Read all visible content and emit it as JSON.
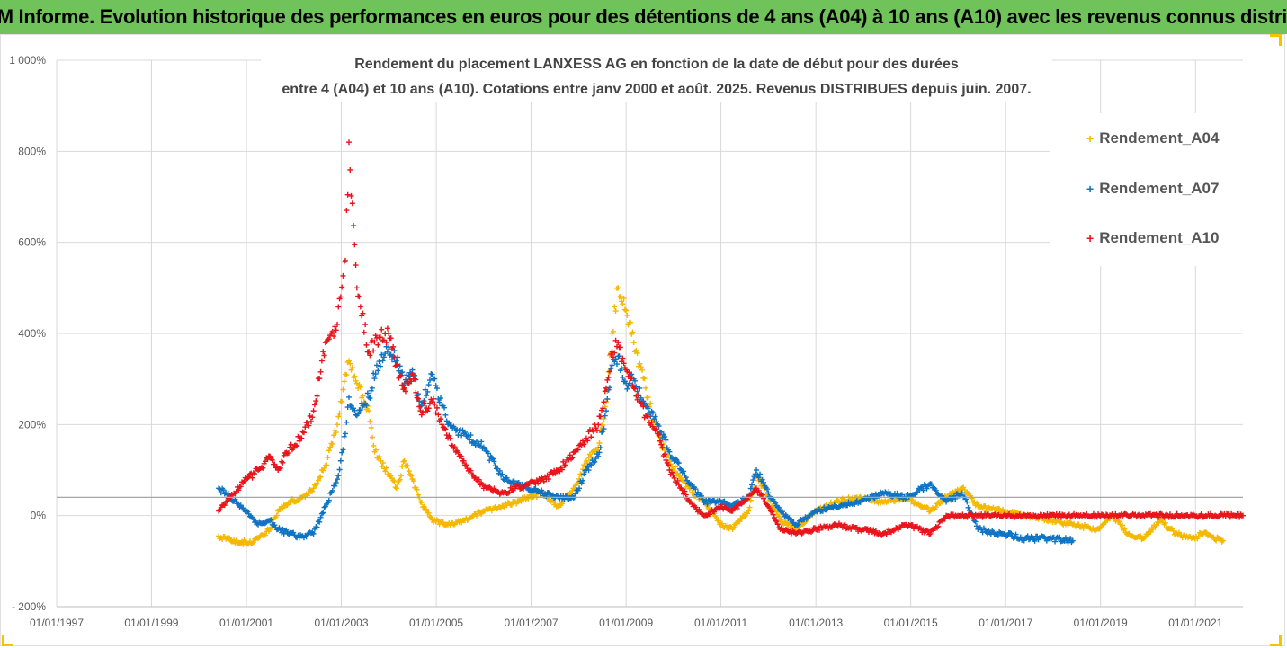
{
  "banner": {
    "title": "ADAM Informe. Evolution historique des performances en euros pour des détentions de 4 ans (A04) à 10 ans (A10) avec les revenus connus distribués",
    "background": "#70c35a"
  },
  "chart_data": {
    "type": "scatter",
    "title_line1": "Rendement du placement LANXESS AG en fonction de la date de début pour des durées",
    "title_line2": "entre 4 (A04) et 10 ans (A10). Cotations entre janv 2000 et août. 2025. Revenus DISTRIBUES depuis juin. 2007.",
    "xlabel": "",
    "ylabel": "",
    "x_tick_labels": [
      "01/01/1997",
      "01/01/1999",
      "01/01/2001",
      "01/01/2003",
      "01/01/2005",
      "01/01/2007",
      "01/01/2009",
      "01/01/2011",
      "01/01/2013",
      "01/01/2015",
      "01/01/2017",
      "01/01/2019",
      "01/01/2021"
    ],
    "x_ticks": [
      "1997-01-01",
      "1999-01-01",
      "2001-01-01",
      "2003-01-01",
      "2005-01-01",
      "2007-01-01",
      "2009-01-01",
      "2011-01-01",
      "2013-01-01",
      "2015-01-01",
      "2017-01-01",
      "2019-01-01",
      "2021-01-01"
    ],
    "xlim": [
      "1997-01-01",
      "2022-01-01"
    ],
    "y_tick_labels": [
      "- 200%",
      "0%",
      "200%",
      "400%",
      "600%",
      "800%",
      "1 000%"
    ],
    "y_ticks": [
      -200,
      0,
      200,
      400,
      600,
      800,
      1000
    ],
    "ylim": [
      -200,
      1000
    ],
    "reference_line_y": 40,
    "grid": true,
    "legend_position": "right",
    "marker": "+",
    "series": [
      {
        "name": "Rendement_A04",
        "color": "#f5b800",
        "points": [
          [
            "2000-06-01",
            -45
          ],
          [
            "2000-09-01",
            -55
          ],
          [
            "2001-01-01",
            -60
          ],
          [
            "2001-04-01",
            -50
          ],
          [
            "2001-07-01",
            -30
          ],
          [
            "2001-09-01",
            10
          ],
          [
            "2001-12-01",
            30
          ],
          [
            "2002-03-01",
            40
          ],
          [
            "2002-06-01",
            60
          ],
          [
            "2002-09-01",
            110
          ],
          [
            "2002-12-01",
            200
          ],
          [
            "2003-02-01",
            310
          ],
          [
            "2003-03-01",
            340
          ],
          [
            "2003-05-01",
            290
          ],
          [
            "2003-08-01",
            230
          ],
          [
            "2003-09-15",
            140
          ],
          [
            "2003-11-01",
            120
          ],
          [
            "2004-01-01",
            90
          ],
          [
            "2004-03-01",
            60
          ],
          [
            "2004-05-01",
            120
          ],
          [
            "2004-07-01",
            80
          ],
          [
            "2004-09-01",
            30
          ],
          [
            "2004-12-01",
            -10
          ],
          [
            "2005-04-01",
            -20
          ],
          [
            "2005-08-01",
            -10
          ],
          [
            "2006-01-01",
            10
          ],
          [
            "2006-06-01",
            20
          ],
          [
            "2006-12-01",
            40
          ],
          [
            "2007-04-01",
            50
          ],
          [
            "2007-08-01",
            20
          ],
          [
            "2007-12-01",
            60
          ],
          [
            "2008-03-01",
            120
          ],
          [
            "2008-06-01",
            150
          ],
          [
            "2008-08-01",
            250
          ],
          [
            "2008-09-15",
            400
          ],
          [
            "2008-11-01",
            500
          ],
          [
            "2009-01-01",
            450
          ],
          [
            "2009-03-01",
            380
          ],
          [
            "2009-06-01",
            280
          ],
          [
            "2009-09-01",
            180
          ],
          [
            "2009-12-01",
            120
          ],
          [
            "2010-03-01",
            80
          ],
          [
            "2010-06-01",
            50
          ],
          [
            "2010-09-01",
            30
          ],
          [
            "2011-01-01",
            -20
          ],
          [
            "2011-04-01",
            -30
          ],
          [
            "2011-08-01",
            10
          ],
          [
            "2011-10-01",
            90
          ],
          [
            "2012-01-01",
            40
          ],
          [
            "2012-04-01",
            -10
          ],
          [
            "2012-08-01",
            -30
          ],
          [
            "2013-01-01",
            10
          ],
          [
            "2013-06-01",
            30
          ],
          [
            "2013-12-01",
            40
          ],
          [
            "2014-06-01",
            30
          ],
          [
            "2014-12-01",
            40
          ],
          [
            "2015-06-01",
            10
          ],
          [
            "2015-10-01",
            40
          ],
          [
            "2016-02-01",
            60
          ],
          [
            "2016-06-01",
            20
          ],
          [
            "2016-12-01",
            10
          ],
          [
            "2017-06-01",
            0
          ],
          [
            "2017-12-01",
            -10
          ],
          [
            "2018-06-01",
            -20
          ],
          [
            "2018-12-01",
            -30
          ],
          [
            "2019-04-01",
            0
          ],
          [
            "2019-08-01",
            -40
          ],
          [
            "2019-12-01",
            -50
          ],
          [
            "2020-04-01",
            -10
          ],
          [
            "2020-08-01",
            -40
          ],
          [
            "2020-12-01",
            -50
          ],
          [
            "2021-03-01",
            -40
          ],
          [
            "2021-08-01",
            -55
          ]
        ]
      },
      {
        "name": "Rendement_A07",
        "color": "#0f73c3",
        "points": [
          [
            "2000-06-01",
            60
          ],
          [
            "2000-09-01",
            40
          ],
          [
            "2001-01-01",
            10
          ],
          [
            "2001-04-01",
            -20
          ],
          [
            "2001-07-01",
            -10
          ],
          [
            "2001-09-01",
            -30
          ],
          [
            "2001-12-01",
            -40
          ],
          [
            "2002-03-01",
            -45
          ],
          [
            "2002-06-01",
            -40
          ],
          [
            "2002-09-01",
            20
          ],
          [
            "2002-12-01",
            80
          ],
          [
            "2003-02-01",
            180
          ],
          [
            "2003-03-01",
            260
          ],
          [
            "2003-05-01",
            220
          ],
          [
            "2003-08-01",
            260
          ],
          [
            "2003-10-01",
            330
          ],
          [
            "2004-01-01",
            370
          ],
          [
            "2004-03-01",
            340
          ],
          [
            "2004-05-01",
            290
          ],
          [
            "2004-07-01",
            320
          ],
          [
            "2004-09-01",
            240
          ],
          [
            "2004-12-01",
            310
          ],
          [
            "2005-04-01",
            200
          ],
          [
            "2005-08-01",
            180
          ],
          [
            "2006-01-01",
            150
          ],
          [
            "2006-06-01",
            80
          ],
          [
            "2006-12-01",
            60
          ],
          [
            "2007-04-01",
            50
          ],
          [
            "2007-08-01",
            40
          ],
          [
            "2007-12-01",
            40
          ],
          [
            "2008-03-01",
            100
          ],
          [
            "2008-06-01",
            130
          ],
          [
            "2008-08-01",
            230
          ],
          [
            "2008-09-15",
            330
          ],
          [
            "2008-11-01",
            350
          ],
          [
            "2009-01-01",
            290
          ],
          [
            "2009-03-01",
            300
          ],
          [
            "2009-06-01",
            240
          ],
          [
            "2009-09-01",
            200
          ],
          [
            "2009-12-01",
            140
          ],
          [
            "2010-03-01",
            100
          ],
          [
            "2010-06-01",
            60
          ],
          [
            "2010-09-01",
            30
          ],
          [
            "2011-01-01",
            30
          ],
          [
            "2011-04-01",
            20
          ],
          [
            "2011-08-01",
            40
          ],
          [
            "2011-10-01",
            100
          ],
          [
            "2012-01-01",
            50
          ],
          [
            "2012-04-01",
            10
          ],
          [
            "2012-08-01",
            -20
          ],
          [
            "2013-01-01",
            10
          ],
          [
            "2013-06-01",
            20
          ],
          [
            "2013-12-01",
            30
          ],
          [
            "2014-06-01",
            50
          ],
          [
            "2014-12-01",
            40
          ],
          [
            "2015-06-01",
            70
          ],
          [
            "2015-10-01",
            30
          ],
          [
            "2016-02-01",
            50
          ],
          [
            "2016-06-01",
            -30
          ],
          [
            "2016-12-01",
            -40
          ],
          [
            "2017-06-01",
            -50
          ],
          [
            "2017-12-01",
            -50
          ],
          [
            "2018-06-01",
            -55
          ]
        ]
      },
      {
        "name": "Rendement_A10",
        "color": "#e8141b",
        "points": [
          [
            "2000-06-01",
            10
          ],
          [
            "2000-09-01",
            40
          ],
          [
            "2001-01-01",
            80
          ],
          [
            "2001-04-01",
            100
          ],
          [
            "2001-07-01",
            130
          ],
          [
            "2001-09-01",
            100
          ],
          [
            "2001-12-01",
            150
          ],
          [
            "2002-03-01",
            170
          ],
          [
            "2002-06-01",
            230
          ],
          [
            "2002-09-01",
            380
          ],
          [
            "2002-12-01",
            420
          ],
          [
            "2003-02-01",
            560
          ],
          [
            "2003-03-01",
            820
          ],
          [
            "2003-05-01",
            500
          ],
          [
            "2003-08-01",
            360
          ],
          [
            "2003-10-01",
            390
          ],
          [
            "2004-01-01",
            400
          ],
          [
            "2004-03-01",
            330
          ],
          [
            "2004-05-01",
            280
          ],
          [
            "2004-07-01",
            310
          ],
          [
            "2004-09-01",
            230
          ],
          [
            "2004-12-01",
            250
          ],
          [
            "2005-04-01",
            170
          ],
          [
            "2005-08-01",
            120
          ],
          [
            "2006-01-01",
            60
          ],
          [
            "2006-06-01",
            50
          ],
          [
            "2006-12-01",
            70
          ],
          [
            "2007-04-01",
            80
          ],
          [
            "2007-08-01",
            100
          ],
          [
            "2007-12-01",
            140
          ],
          [
            "2008-03-01",
            170
          ],
          [
            "2008-06-01",
            200
          ],
          [
            "2008-08-01",
            280
          ],
          [
            "2008-09-15",
            360
          ],
          [
            "2008-11-01",
            380
          ],
          [
            "2009-01-01",
            320
          ],
          [
            "2009-03-01",
            280
          ],
          [
            "2009-06-01",
            220
          ],
          [
            "2009-09-01",
            180
          ],
          [
            "2009-12-01",
            100
          ],
          [
            "2010-03-01",
            60
          ],
          [
            "2010-06-01",
            20
          ],
          [
            "2010-09-01",
            0
          ],
          [
            "2011-01-01",
            20
          ],
          [
            "2011-04-01",
            10
          ],
          [
            "2011-08-01",
            40
          ],
          [
            "2011-10-01",
            60
          ],
          [
            "2012-01-01",
            20
          ],
          [
            "2012-04-01",
            -30
          ],
          [
            "2012-08-01",
            -40
          ],
          [
            "2013-01-01",
            -30
          ],
          [
            "2013-06-01",
            -20
          ],
          [
            "2013-12-01",
            -30
          ],
          [
            "2014-06-01",
            -40
          ],
          [
            "2014-12-01",
            -20
          ],
          [
            "2015-06-01",
            -40
          ],
          [
            "2015-10-01",
            0
          ],
          [
            "2016-06-01",
            0
          ],
          [
            "2017-06-01",
            0
          ],
          [
            "2018-06-01",
            0
          ],
          [
            "2019-06-01",
            0
          ],
          [
            "2020-06-01",
            0
          ],
          [
            "2021-06-01",
            0
          ],
          [
            "2022-01-01",
            0
          ]
        ]
      }
    ]
  }
}
